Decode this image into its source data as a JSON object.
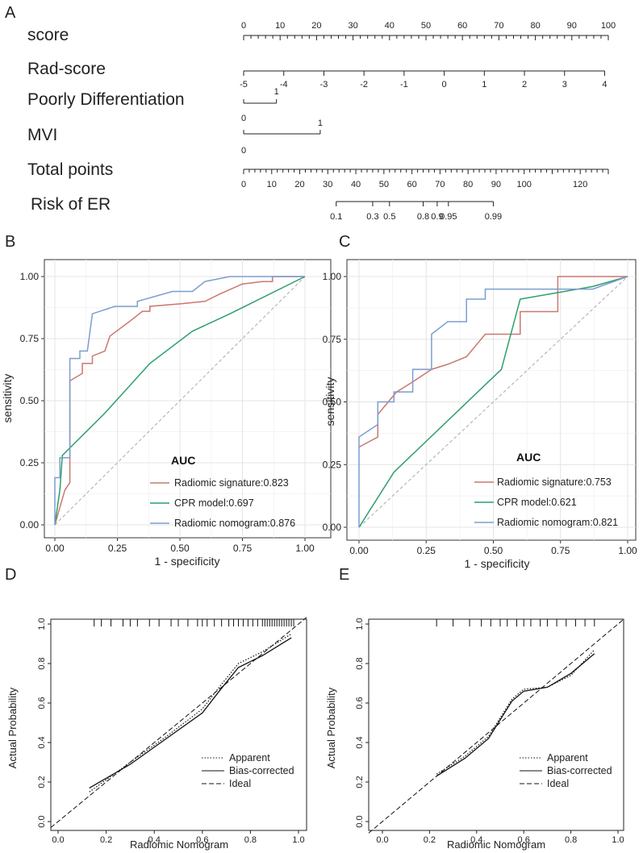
{
  "panels": {
    "a": "A",
    "b": "B",
    "c": "C",
    "d": "D",
    "e": "E"
  },
  "nomogram": {
    "rows": [
      {
        "name": "score-row",
        "label": "score"
      },
      {
        "name": "rad-score-row",
        "label": "Rad-score"
      },
      {
        "name": "poorly-differentiation-row",
        "label": "Poorly Differentiation"
      },
      {
        "name": "mvi-row",
        "label": "MVI"
      },
      {
        "name": "total-points-row",
        "label": "Total points"
      },
      {
        "name": "risk-of-er-row",
        "label": "Risk of ER"
      }
    ],
    "score_axis": {
      "range": [
        0,
        100
      ],
      "labels": [
        "0",
        "10",
        "20",
        "30",
        "40",
        "50",
        "60",
        "70",
        "80",
        "90",
        "100"
      ]
    },
    "rad_score_axis": {
      "labels": [
        "-5",
        "-4",
        "-3",
        "-2",
        "-1",
        "0",
        "1",
        "2",
        "3",
        "4"
      ],
      "points": [
        0,
        11,
        22,
        33,
        44,
        55,
        66,
        77,
        88,
        99
      ]
    },
    "poorly_differentiation": {
      "levels": [
        {
          "label": "0",
          "points": 0
        },
        {
          "label": "1",
          "points": 9
        }
      ]
    },
    "mvi": {
      "levels": [
        {
          "label": "0",
          "points": 0
        },
        {
          "label": "1",
          "points": 21
        }
      ]
    },
    "total_points_axis": {
      "labels": [
        "0",
        "10",
        "20",
        "30",
        "40",
        "50",
        "60",
        "70",
        "80",
        "90",
        "100",
        "120"
      ],
      "values": [
        0,
        10,
        20,
        30,
        40,
        50,
        60,
        70,
        80,
        90,
        100,
        120
      ],
      "max": 130
    },
    "risk_axis": {
      "labels": [
        "0.1",
        "0.3",
        "0.5",
        "0.8",
        "0.9",
        "0.95",
        "0.99"
      ],
      "total_points": [
        33,
        46,
        52,
        64,
        69,
        73,
        89
      ]
    }
  },
  "roc": {
    "xlabel": "1 - specificity",
    "ylabel": "sensitivity",
    "ticks": [
      "0.00",
      "0.25",
      "0.50",
      "0.75",
      "1.00"
    ],
    "legend_title": "AUC",
    "colors": {
      "Radiomic signature": "#c97870",
      "CPR model": "#2e9e6a",
      "Radiomic nomogram": "#7b9dd1"
    },
    "train": {
      "series": [
        {
          "name": "Radiomic signature",
          "legend": "Radiomic signature:0.823",
          "points": [
            [
              0,
              0
            ],
            [
              0.02,
              0.07
            ],
            [
              0.04,
              0.14
            ],
            [
              0.06,
              0.17
            ],
            [
              0.06,
              0.58
            ],
            [
              0.11,
              0.61
            ],
            [
              0.11,
              0.65
            ],
            [
              0.15,
              0.65
            ],
            [
              0.15,
              0.68
            ],
            [
              0.2,
              0.7
            ],
            [
              0.22,
              0.76
            ],
            [
              0.3,
              0.82
            ],
            [
              0.35,
              0.86
            ],
            [
              0.38,
              0.86
            ],
            [
              0.38,
              0.88
            ],
            [
              0.5,
              0.89
            ],
            [
              0.6,
              0.9
            ],
            [
              0.66,
              0.93
            ],
            [
              0.75,
              0.97
            ],
            [
              0.83,
              0.98
            ],
            [
              0.87,
              0.98
            ],
            [
              0.87,
              1.0
            ],
            [
              1,
              1
            ]
          ]
        },
        {
          "name": "CPR model",
          "legend": "CPR model:0.697",
          "points": [
            [
              0,
              0
            ],
            [
              0.02,
              0.14
            ],
            [
              0.03,
              0.28
            ],
            [
              0.05,
              0.3
            ],
            [
              0.2,
              0.45
            ],
            [
              0.38,
              0.65
            ],
            [
              0.55,
              0.78
            ],
            [
              0.7,
              0.85
            ],
            [
              1,
              1
            ]
          ]
        },
        {
          "name": "Radiomic nomogram",
          "legend": "Radiomic nomogram:0.876",
          "points": [
            [
              0,
              0
            ],
            [
              0,
              0.19
            ],
            [
              0.02,
              0.19
            ],
            [
              0.02,
              0.27
            ],
            [
              0.06,
              0.27
            ],
            [
              0.06,
              0.67
            ],
            [
              0.1,
              0.67
            ],
            [
              0.1,
              0.7
            ],
            [
              0.13,
              0.7
            ],
            [
              0.15,
              0.85
            ],
            [
              0.24,
              0.88
            ],
            [
              0.33,
              0.88
            ],
            [
              0.33,
              0.9
            ],
            [
              0.47,
              0.94
            ],
            [
              0.55,
              0.94
            ],
            [
              0.6,
              0.98
            ],
            [
              0.7,
              1.0
            ],
            [
              1,
              1
            ]
          ]
        }
      ]
    },
    "validation": {
      "series": [
        {
          "name": "Radiomic signature",
          "legend": "Radiomic signature:0.753",
          "points": [
            [
              0,
              0.32
            ],
            [
              0.07,
              0.36
            ],
            [
              0.07,
              0.45
            ],
            [
              0.14,
              0.54
            ],
            [
              0.2,
              0.58
            ],
            [
              0.27,
              0.63
            ],
            [
              0.33,
              0.65
            ],
            [
              0.4,
              0.68
            ],
            [
              0.47,
              0.77
            ],
            [
              0.6,
              0.77
            ],
            [
              0.6,
              0.86
            ],
            [
              0.74,
              0.86
            ],
            [
              0.74,
              1.0
            ],
            [
              1,
              1
            ]
          ]
        },
        {
          "name": "CPR model",
          "legend": "CPR model:0.621",
          "points": [
            [
              0,
              0
            ],
            [
              0.13,
              0.22
            ],
            [
              0.53,
              0.63
            ],
            [
              0.6,
              0.91
            ],
            [
              0.87,
              0.96
            ],
            [
              1,
              1
            ]
          ]
        },
        {
          "name": "Radiomic nomogram",
          "legend": "Radiomic nomogram:0.821",
          "points": [
            [
              0,
              0
            ],
            [
              0,
              0.36
            ],
            [
              0.07,
              0.41
            ],
            [
              0.07,
              0.5
            ],
            [
              0.13,
              0.5
            ],
            [
              0.13,
              0.54
            ],
            [
              0.2,
              0.54
            ],
            [
              0.2,
              0.63
            ],
            [
              0.27,
              0.63
            ],
            [
              0.27,
              0.77
            ],
            [
              0.33,
              0.82
            ],
            [
              0.4,
              0.82
            ],
            [
              0.4,
              0.91
            ],
            [
              0.47,
              0.91
            ],
            [
              0.47,
              0.95
            ],
            [
              0.6,
              0.95
            ],
            [
              0.87,
              0.95
            ],
            [
              1,
              1
            ]
          ]
        }
      ]
    }
  },
  "calibration": {
    "xlabel": "Radiomic Nomogram",
    "ylabel": "Actual Probability",
    "xticks": [
      "0.0",
      "0.2",
      "0.4",
      "0.6",
      "0.8",
      "1.0"
    ],
    "yticks": [
      "0.0",
      "0.2",
      "0.4",
      "0.6",
      "0.8",
      "1.0"
    ],
    "legend": [
      "Apparent",
      "Bias-corrected",
      "Ideal"
    ],
    "train": {
      "apparent": [
        [
          0.13,
          0.15
        ],
        [
          0.3,
          0.3
        ],
        [
          0.45,
          0.43
        ],
        [
          0.6,
          0.57
        ],
        [
          0.67,
          0.68
        ],
        [
          0.75,
          0.8
        ],
        [
          0.85,
          0.86
        ],
        [
          0.97,
          0.95
        ]
      ],
      "bias_corrected": [
        [
          0.13,
          0.17
        ],
        [
          0.3,
          0.29
        ],
        [
          0.45,
          0.42
        ],
        [
          0.6,
          0.55
        ],
        [
          0.67,
          0.66
        ],
        [
          0.75,
          0.78
        ],
        [
          0.85,
          0.84
        ],
        [
          0.97,
          0.93
        ]
      ],
      "rug": [
        0.15,
        0.18,
        0.22,
        0.27,
        0.3,
        0.33,
        0.38,
        0.42,
        0.47,
        0.5,
        0.54,
        0.58,
        0.6,
        0.62,
        0.65,
        0.68,
        0.71,
        0.73,
        0.75,
        0.77,
        0.79,
        0.81,
        0.83,
        0.85,
        0.86,
        0.87,
        0.88,
        0.89,
        0.9,
        0.91,
        0.92,
        0.93,
        0.94,
        0.95,
        0.96,
        0.97,
        0.98
      ]
    },
    "validation": {
      "apparent": [
        [
          0.23,
          0.24
        ],
        [
          0.35,
          0.33
        ],
        [
          0.45,
          0.43
        ],
        [
          0.55,
          0.62
        ],
        [
          0.6,
          0.67
        ],
        [
          0.7,
          0.68
        ],
        [
          0.8,
          0.74
        ],
        [
          0.9,
          0.87
        ]
      ],
      "bias_corrected": [
        [
          0.23,
          0.23
        ],
        [
          0.35,
          0.32
        ],
        [
          0.45,
          0.42
        ],
        [
          0.55,
          0.61
        ],
        [
          0.6,
          0.66
        ],
        [
          0.7,
          0.68
        ],
        [
          0.8,
          0.75
        ],
        [
          0.9,
          0.85
        ]
      ],
      "rug": [
        0.23,
        0.3,
        0.37,
        0.42,
        0.46,
        0.5,
        0.53,
        0.57,
        0.6,
        0.63,
        0.67,
        0.7,
        0.74,
        0.78,
        0.82,
        0.86,
        0.9
      ]
    }
  }
}
